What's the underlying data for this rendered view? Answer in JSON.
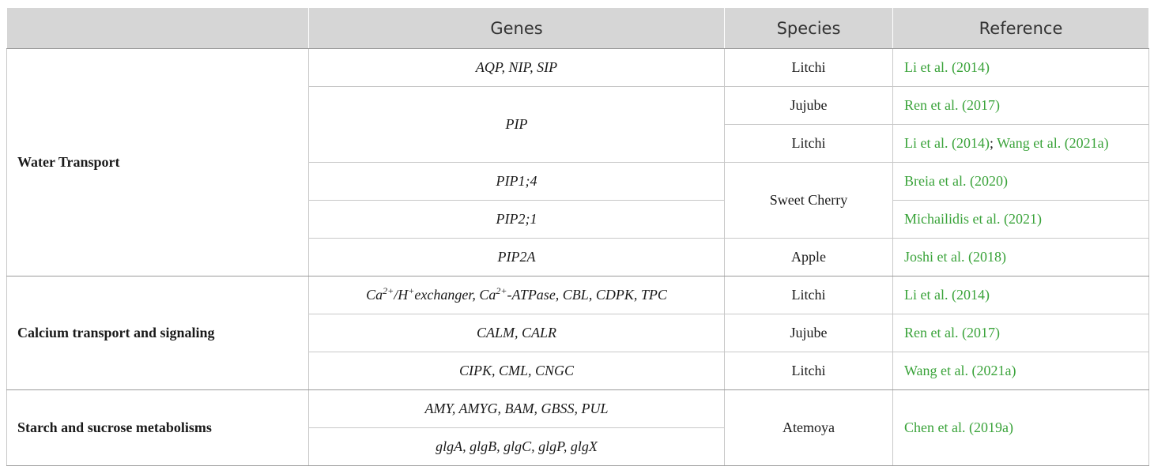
{
  "headers": [
    "",
    "Genes",
    "Species",
    "Reference"
  ],
  "categories": {
    "water": "Water Transport",
    "calcium": "Calcium transport and signaling",
    "starch": "Starch and sucrose metabolisms"
  },
  "genes": {
    "g1": "AQP, NIP, SIP",
    "g2": "PIP",
    "g3": "PIP1;4",
    "g4": "PIP2;1",
    "g5": "PIP2A",
    "g6": {
      "ca": "Ca",
      "sup1": "2+",
      "h": "/H",
      "sup2": "+",
      "rest": "exchanger, Ca",
      "sup3": "2+",
      "tail": "-ATPase, CBL, CDPK, TPC"
    },
    "g7": "CALM, CALR",
    "g8": "CIPK, CML, CNGC",
    "g9": "AMY, AMYG, BAM, GBSS, PUL",
    "g10": "glgA, glgB, glgC, glgP, glgX"
  },
  "species": {
    "s1": "Litchi",
    "s2": "Jujube",
    "s3": "Litchi",
    "s4": "Sweet Cherry",
    "s5": "Apple",
    "s6": "Litchi",
    "s7": "Jujube",
    "s8": "Litchi",
    "s9": "Atemoya"
  },
  "references": {
    "r1": "Li et al. (2014)",
    "r2": "Ren et al. (2017)",
    "r3a": "Li et al. (2014)",
    "r3sep": ";",
    "r3b": "Wang et al. (2021a)",
    "r4": "Breia et al. (2020)",
    "r5": "Michailidis et al. (2021)",
    "r6": "Joshi et al. (2018)",
    "r7": "Li et al. (2014)",
    "r8": "Ren et al. (2017)",
    "r9": "Wang et al. (2021a)",
    "r10": "Chen et al. (2019a)"
  },
  "colors": {
    "header_bg": "#d6d6d6",
    "link": "#3aa33a",
    "border": "#c8c8c8"
  }
}
